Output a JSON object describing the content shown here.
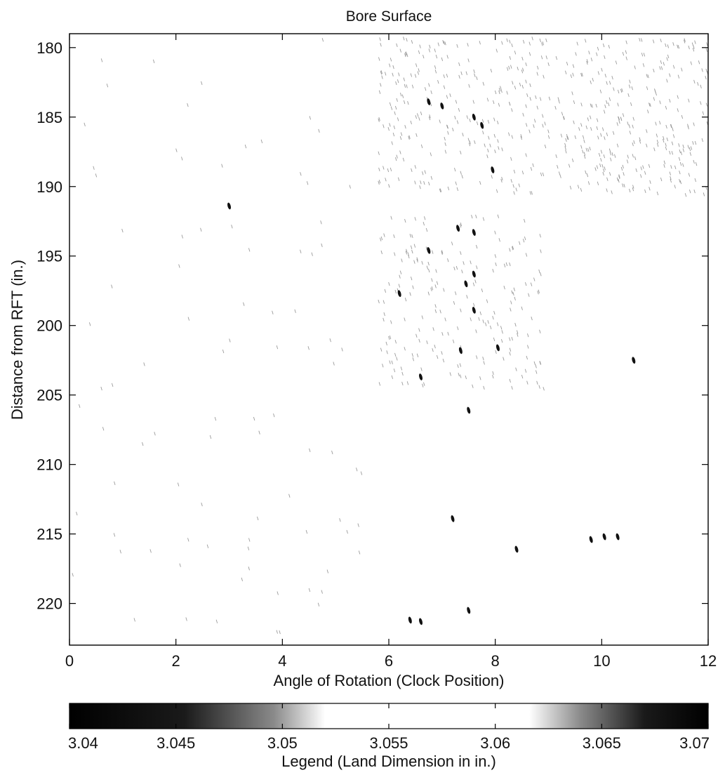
{
  "chart_data": {
    "type": "heatmap",
    "title": "Bore Surface",
    "xlabel": "Angle of Rotation (Clock Position)",
    "ylabel": "Distance from RFT (in.)",
    "xlim": [
      0,
      12
    ],
    "ylim": [
      179,
      223
    ],
    "y_inverted": true,
    "x_ticks": [
      0,
      2,
      4,
      6,
      8,
      10,
      12
    ],
    "y_ticks": [
      180,
      185,
      190,
      195,
      200,
      205,
      210,
      215,
      220
    ],
    "x_tick_labels": [
      "0",
      "2",
      "4",
      "6",
      "8",
      "10",
      "12"
    ],
    "y_tick_labels": [
      "180",
      "185",
      "190",
      "195",
      "200",
      "205",
      "210",
      "215",
      "220"
    ],
    "grid": false,
    "colorbar": {
      "label": "Legend (Land Dimension in in.)",
      "range": [
        3.04,
        3.07
      ],
      "ticks": [
        3.04,
        3.045,
        3.05,
        3.055,
        3.06,
        3.065,
        3.07
      ],
      "tick_labels": [
        "3.04",
        "3.045",
        "3.05",
        "3.055",
        "3.06",
        "3.065",
        "3.07"
      ],
      "colormap": "black → grey → white (3.05–3.062) → grey → black",
      "colors": [
        "#000000",
        "#1a1a1a",
        "#8a8a8a",
        "#ffffff",
        "#ffffff",
        "#8a8a8a",
        "#1a1a1a",
        "#000000"
      ]
    },
    "marks": [
      {
        "x": 6.4,
        "y": 221.2
      },
      {
        "x": 6.6,
        "y": 221.3
      },
      {
        "x": 7.5,
        "y": 220.5
      },
      {
        "x": 8.4,
        "y": 216.1
      },
      {
        "x": 9.8,
        "y": 215.4
      },
      {
        "x": 10.05,
        "y": 215.2
      },
      {
        "x": 10.3,
        "y": 215.2
      },
      {
        "x": 7.2,
        "y": 213.9
      },
      {
        "x": 7.5,
        "y": 206.1
      },
      {
        "x": 6.6,
        "y": 203.7
      },
      {
        "x": 7.35,
        "y": 201.8
      },
      {
        "x": 8.05,
        "y": 201.6
      },
      {
        "x": 10.6,
        "y": 202.5
      },
      {
        "x": 7.6,
        "y": 198.9
      },
      {
        "x": 6.2,
        "y": 197.7
      },
      {
        "x": 7.45,
        "y": 197.0
      },
      {
        "x": 7.6,
        "y": 196.3
      },
      {
        "x": 6.75,
        "y": 194.6
      },
      {
        "x": 7.3,
        "y": 193.0
      },
      {
        "x": 7.6,
        "y": 193.3
      },
      {
        "x": 3.0,
        "y": 191.4
      },
      {
        "x": 7.95,
        "y": 188.8
      },
      {
        "x": 7.75,
        "y": 185.6
      },
      {
        "x": 6.75,
        "y": 183.9
      },
      {
        "x": 7.0,
        "y": 184.2
      },
      {
        "x": 7.6,
        "y": 185.0
      }
    ]
  }
}
